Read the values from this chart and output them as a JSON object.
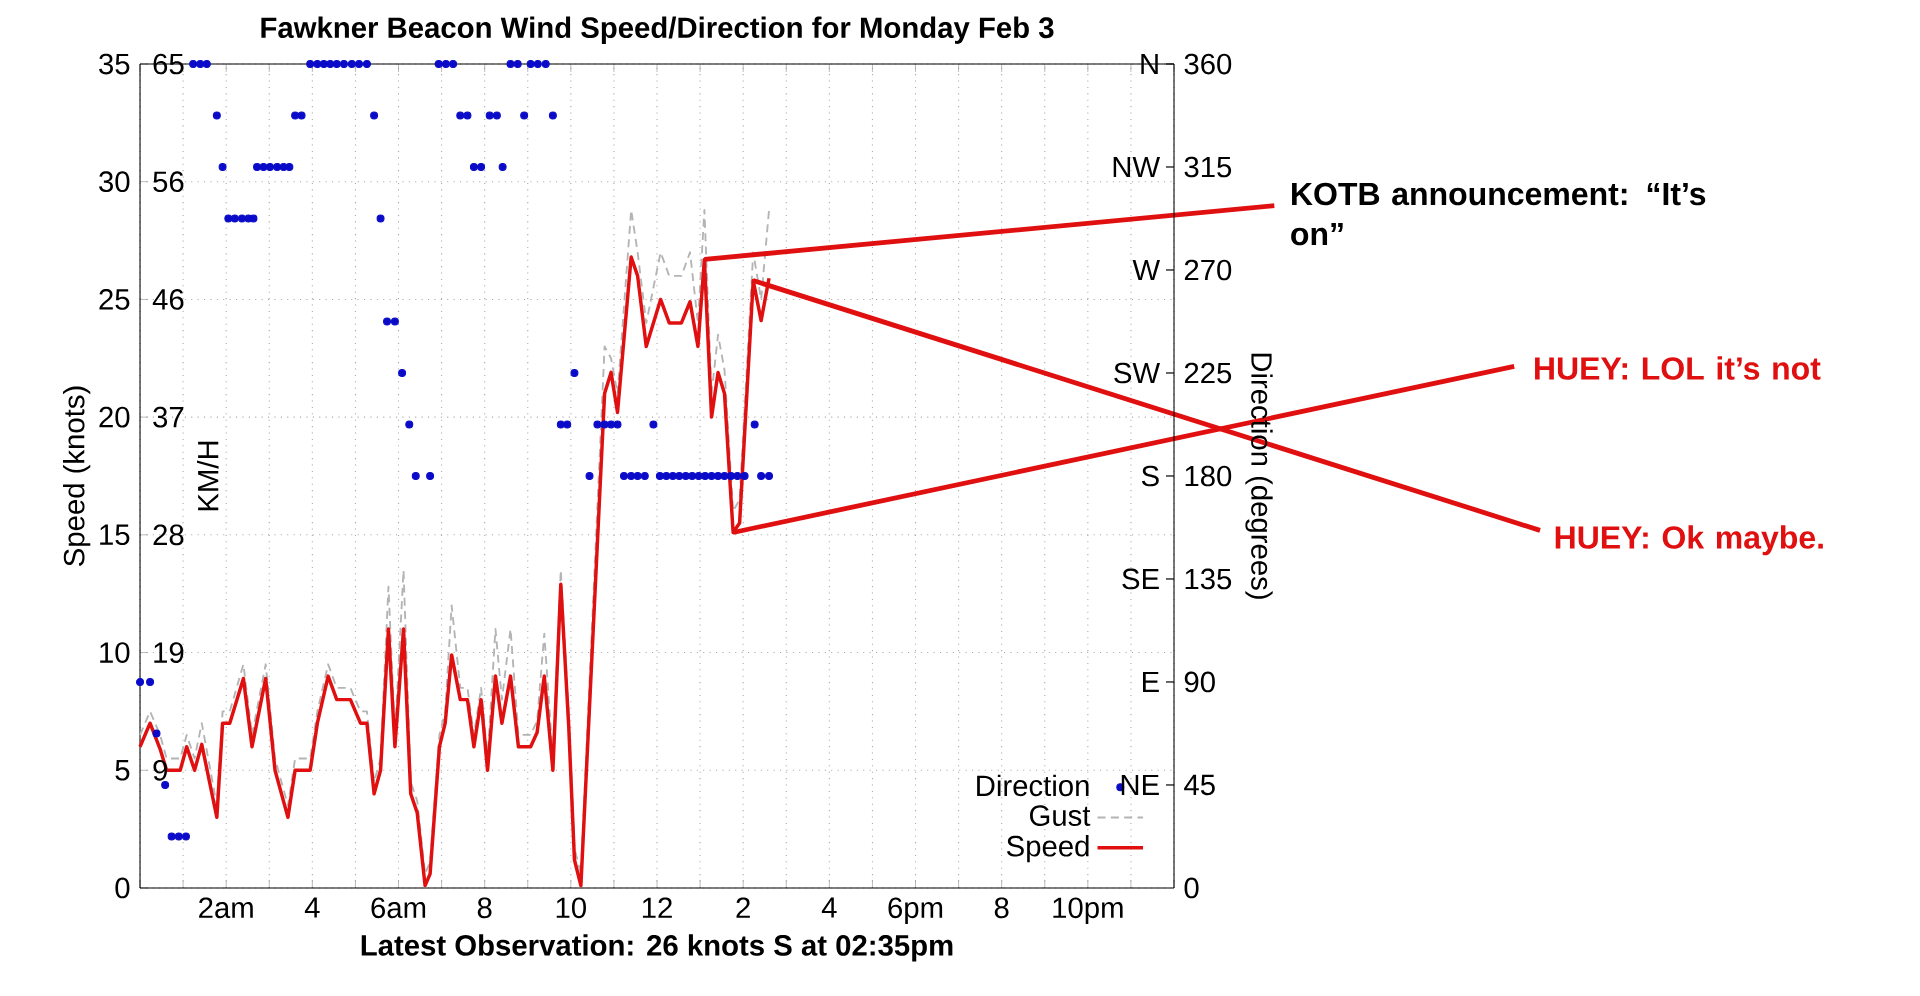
{
  "chart_data": {
    "type": "line",
    "title": "Fawkner Beacon Wind Speed/Direction for Monday Feb 3",
    "xlabel": "Latest Observation: 26 knots S at 02:35pm",
    "ylabel": "Speed (knots)",
    "y2label": "Direction (degrees)",
    "y3label": "KM/H",
    "xlim": [
      "--02-03T00:00",
      "--02-04T00:00"
    ],
    "xticks": [
      {
        "value": "--02-03T00:00",
        "label": null
      },
      {
        "value": "--02-03T01:00",
        "label": null
      },
      {
        "value": "--02-03T02:00",
        "label": "2am"
      },
      {
        "value": "--02-03T03:00",
        "label": null
      },
      {
        "value": "--02-03T04:00",
        "label": "4"
      },
      {
        "value": "--02-03T05:00",
        "label": null
      },
      {
        "value": "--02-03T06:00",
        "label": "6am"
      },
      {
        "value": "--02-03T07:00",
        "label": null
      },
      {
        "value": "--02-03T08:00",
        "label": "8"
      },
      {
        "value": "--02-03T09:00",
        "label": null
      },
      {
        "value": "--02-03T10:00",
        "label": "10"
      },
      {
        "value": "--02-03T11:00",
        "label": null
      },
      {
        "value": "--02-03T12:00",
        "label": "12"
      },
      {
        "value": "--02-03T13:00",
        "label": null
      },
      {
        "value": "--02-03T14:00",
        "label": "2"
      },
      {
        "value": "--02-03T15:00",
        "label": null
      },
      {
        "value": "--02-03T16:00",
        "label": "4"
      },
      {
        "value": "--02-03T17:00",
        "label": null
      },
      {
        "value": "--02-03T18:00",
        "label": "6pm"
      },
      {
        "value": "--02-03T19:00",
        "label": null
      },
      {
        "value": "--02-03T20:00",
        "label": "8"
      },
      {
        "value": "--02-03T21:00",
        "label": null
      },
      {
        "value": "--02-03T22:00",
        "label": "10pm"
      },
      {
        "value": "--02-03T23:00",
        "label": null
      },
      {
        "value": "--02-04T00:00",
        "label": null
      }
    ],
    "ylim": [
      0,
      35
    ],
    "yticks": [
      0,
      5,
      10,
      15,
      20,
      25,
      30,
      35
    ],
    "y2lim": [
      0,
      360
    ],
    "y2ticks": [
      0,
      45,
      90,
      135,
      180,
      225,
      270,
      315,
      360
    ],
    "y3lim": [
      0,
      64.82
    ],
    "y3ticks": [
      {
        "value": 9.26,
        "label": "9"
      },
      {
        "value": 18.52,
        "label": "19"
      },
      {
        "value": 27.78,
        "label": "28"
      },
      {
        "value": 37.04,
        "label": "37"
      },
      {
        "value": 46.3,
        "label": "46"
      },
      {
        "value": 55.56,
        "label": "56"
      },
      {
        "value": 64.82,
        "label": "65"
      }
    ],
    "grid": true,
    "legend": "bottom right",
    "series": [
      {
        "name": "Direction",
        "type": "scatter",
        "axis": "y2",
        "marker": "circle",
        "color": "#0a0ac8",
        "x": [
          "--02-03T00:00",
          "--02-03T00:14",
          "--02-03T00:23",
          "--02-03T00:35",
          "--02-03T00:44",
          "--02-03T00:54",
          "--02-03T01:04",
          "--02-03T01:14",
          "--02-03T01:24",
          "--02-03T01:33",
          "--02-03T01:47",
          "--02-03T01:55",
          "--02-03T02:03",
          "--02-03T02:12",
          "--02-03T02:22",
          "--02-03T02:31",
          "--02-03T02:38",
          "--02-03T02:43",
          "--02-03T02:52",
          "--02-03T03:01",
          "--02-03T03:11",
          "--02-03T03:20",
          "--02-03T03:28",
          "--02-03T03:36",
          "--02-03T03:45",
          "--02-03T03:57",
          "--02-03T04:07",
          "--02-03T04:16",
          "--02-03T04:25",
          "--02-03T04:34",
          "--02-03T04:44",
          "--02-03T04:55",
          "--02-03T05:05",
          "--02-03T05:16",
          "--02-03T05:26",
          "--02-03T05:35",
          "--02-03T05:44",
          "--02-03T05:55",
          "--02-03T06:05",
          "--02-03T06:15",
          "--02-03T06:24",
          "--02-03T06:44",
          "--02-03T06:56",
          "--02-03T07:06",
          "--02-03T07:16",
          "--02-03T07:26",
          "--02-03T07:36",
          "--02-03T07:45",
          "--02-03T07:55",
          "--02-03T08:07",
          "--02-03T08:17",
          "--02-03T08:25",
          "--02-03T08:36",
          "--02-03T08:46",
          "--02-03T08:55",
          "--02-03T09:04",
          "--02-03T09:14",
          "--02-03T09:25",
          "--02-03T09:35",
          "--02-03T09:46",
          "--02-03T09:55",
          "--02-03T10:05",
          "--02-03T10:26",
          "--02-03T10:37",
          "--02-03T10:47",
          "--02-03T10:56",
          "--02-03T11:05",
          "--02-03T11:14",
          "--02-03T11:24",
          "--02-03T11:33",
          "--02-03T11:43",
          "--02-03T11:55",
          "--02-03T12:04",
          "--02-03T12:13",
          "--02-03T12:22",
          "--02-03T12:31",
          "--02-03T12:40",
          "--02-03T12:49",
          "--02-03T12:58",
          "--02-03T13:07",
          "--02-03T13:16",
          "--02-03T13:25",
          "--02-03T13:34",
          "--02-03T13:43",
          "--02-03T13:52",
          "--02-03T14:02",
          "--02-03T14:16",
          "--02-03T14:25",
          "--02-03T14:36"
        ],
        "values": [
          90,
          90,
          67.5,
          45,
          22.5,
          22.5,
          22.5,
          360,
          360,
          360,
          337.5,
          315,
          292.5,
          292.5,
          292.5,
          292.5,
          292.5,
          315,
          315,
          315,
          315,
          315,
          315,
          337.5,
          337.5,
          360,
          360,
          360,
          360,
          360,
          360,
          360,
          360,
          360,
          337.5,
          292.5,
          247.5,
          247.5,
          225,
          202.5,
          180,
          180,
          360,
          360,
          360,
          337.5,
          337.5,
          315,
          315,
          337.5,
          337.5,
          315,
          360,
          360,
          337.5,
          360,
          360,
          360,
          337.5,
          202.5,
          202.5,
          225,
          180,
          202.5,
          202.5,
          202.5,
          202.5,
          180,
          180,
          180,
          180,
          202.5,
          180,
          180,
          180,
          180,
          180,
          180,
          180,
          180,
          180,
          180,
          180,
          180,
          180,
          180,
          202.5,
          180,
          180
        ]
      },
      {
        "name": "Gust",
        "line_style": "dashed",
        "color": "#b4b4b4",
        "x": [
          "--02-03T00:00",
          "--02-03T00:14",
          "--02-03T00:28",
          "--02-03T00:37",
          "--02-03T00:56",
          "--02-03T01:05",
          "--02-03T01:16",
          "--02-03T01:26",
          "--02-03T01:47",
          "--02-03T01:55",
          "--02-03T02:05",
          "--02-03T02:24",
          "--02-03T02:36",
          "--02-03T02:55",
          "--02-03T03:08",
          "--02-03T03:26",
          "--02-03T03:36",
          "--02-03T03:57",
          "--02-03T04:07",
          "--02-03T04:22",
          "--02-03T04:34",
          "--02-03T04:53",
          "--02-03T05:07",
          "--02-03T05:16",
          "--02-03T05:26",
          "--02-03T05:35",
          "--02-03T05:46",
          "--02-03T05:55",
          "--02-03T06:07",
          "--02-03T06:17",
          "--02-03T06:26",
          "--02-03T06:37",
          "--02-03T06:44",
          "--02-03T06:57",
          "--02-03T07:05",
          "--02-03T07:14",
          "--02-03T07:26",
          "--02-03T07:36",
          "--02-03T07:45",
          "--02-03T07:55",
          "--02-03T08:04",
          "--02-03T08:15",
          "--02-03T08:24",
          "--02-03T08:36",
          "--02-03T08:47",
          "--02-03T09:04",
          "--02-03T09:13",
          "--02-03T09:23",
          "--02-03T09:35",
          "--02-03T09:46",
          "--02-03T09:57",
          "--02-03T10:05",
          "--02-03T10:14",
          "--02-03T10:47",
          "--02-03T10:56",
          "--02-03T11:05",
          "--02-03T11:24",
          "--02-03T11:33",
          "--02-03T11:45",
          "--02-03T12:05",
          "--02-03T12:17",
          "--02-03T12:34",
          "--02-03T12:46",
          "--02-03T12:57",
          "--02-03T13:06",
          "--02-03T13:16",
          "--02-03T13:25",
          "--02-03T13:34",
          "--02-03T13:46",
          "--02-03T13:55",
          "--02-03T14:14",
          "--02-03T14:25",
          "--02-03T14:36"
        ],
        "values": [
          6.5,
          7.5,
          6.5,
          5.5,
          5.5,
          6.5,
          5.5,
          7.0,
          3.5,
          7.5,
          7.5,
          9.5,
          6.5,
          9.5,
          5.5,
          3.5,
          5.5,
          5.5,
          7.5,
          9.5,
          8.5,
          8.5,
          7.5,
          7.5,
          4.5,
          5.5,
          12.8,
          6.5,
          13.5,
          4.5,
          3.7,
          0.6,
          1.1,
          6.5,
          7.5,
          12.0,
          8.5,
          8.5,
          6.5,
          8.5,
          5.5,
          11.0,
          8.0,
          11.0,
          6.5,
          6.5,
          7.1,
          10.8,
          5.5,
          13.5,
          7.4,
          1.7,
          0.6,
          23.0,
          22.5,
          21.0,
          28.8,
          27.0,
          24.0,
          27.0,
          26.0,
          26.0,
          27.0,
          24.0,
          28.8,
          21.0,
          23.5,
          22.0,
          16.0,
          16.5,
          27.0,
          25.0,
          28.8
        ]
      },
      {
        "name": "Speed",
        "line_style": "solid",
        "color": "#e01010",
        "x": [
          "--02-03T00:00",
          "--02-03T00:14",
          "--02-03T00:28",
          "--02-03T00:37",
          "--02-03T00:56",
          "--02-03T01:05",
          "--02-03T01:16",
          "--02-03T01:26",
          "--02-03T01:47",
          "--02-03T01:55",
          "--02-03T02:05",
          "--02-03T02:24",
          "--02-03T02:36",
          "--02-03T02:55",
          "--02-03T03:08",
          "--02-03T03:26",
          "--02-03T03:36",
          "--02-03T03:57",
          "--02-03T04:07",
          "--02-03T04:22",
          "--02-03T04:34",
          "--02-03T04:53",
          "--02-03T05:07",
          "--02-03T05:16",
          "--02-03T05:26",
          "--02-03T05:35",
          "--02-03T05:46",
          "--02-03T05:55",
          "--02-03T06:07",
          "--02-03T06:17",
          "--02-03T06:26",
          "--02-03T06:37",
          "--02-03T06:44",
          "--02-03T06:57",
          "--02-03T07:05",
          "--02-03T07:14",
          "--02-03T07:26",
          "--02-03T07:36",
          "--02-03T07:45",
          "--02-03T07:55",
          "--02-03T08:04",
          "--02-03T08:15",
          "--02-03T08:24",
          "--02-03T08:36",
          "--02-03T08:47",
          "--02-03T09:04",
          "--02-03T09:13",
          "--02-03T09:23",
          "--02-03T09:35",
          "--02-03T09:46",
          "--02-03T09:57",
          "--02-03T10:05",
          "--02-03T10:14",
          "--02-03T10:47",
          "--02-03T10:56",
          "--02-03T11:05",
          "--02-03T11:24",
          "--02-03T11:33",
          "--02-03T11:45",
          "--02-03T12:05",
          "--02-03T12:17",
          "--02-03T12:34",
          "--02-03T12:46",
          "--02-03T12:57",
          "--02-03T13:06",
          "--02-03T13:16",
          "--02-03T13:25",
          "--02-03T13:34",
          "--02-03T13:46",
          "--02-03T13:55",
          "--02-03T14:14",
          "--02-03T14:25",
          "--02-03T14:36"
        ],
        "values": [
          6.0,
          7.0,
          5.9,
          5.0,
          5.0,
          6.0,
          5.0,
          6.1,
          3.0,
          7.0,
          7.0,
          8.9,
          6.0,
          8.9,
          5.0,
          3.0,
          5.0,
          5.0,
          7.0,
          9.0,
          8.0,
          8.0,
          7.0,
          7.0,
          4.0,
          5.0,
          11.0,
          6.0,
          11.0,
          4.0,
          3.2,
          0.1,
          0.6,
          6.0,
          7.0,
          9.9,
          8.0,
          8.0,
          6.0,
          8.0,
          5.0,
          9.0,
          7.0,
          9.0,
          6.0,
          6.0,
          6.6,
          9.0,
          5.0,
          12.9,
          6.9,
          1.2,
          0.1,
          21.0,
          21.9,
          20.2,
          26.8,
          26.0,
          23.0,
          25.0,
          24.0,
          24.0,
          24.9,
          23.0,
          26.7,
          20.0,
          21.9,
          21.0,
          15.1,
          15.5,
          25.8,
          24.1,
          25.9
        ]
      }
    ],
    "annotations": [
      {
        "text": "KOTB announcement: “It’s on”",
        "x": "--02-03T13:06",
        "y": 26.7
      },
      {
        "text": "HUEY: LOL it’s not",
        "x": "--02-03T13:46",
        "y": 15.1
      },
      {
        "text": "HUEY: Ok maybe.",
        "x": "--02-03T14:14",
        "y": 25.8
      },
      "NE",
      "E",
      "SE",
      "S",
      "SW",
      "W",
      "NW",
      "N"
    ]
  }
}
